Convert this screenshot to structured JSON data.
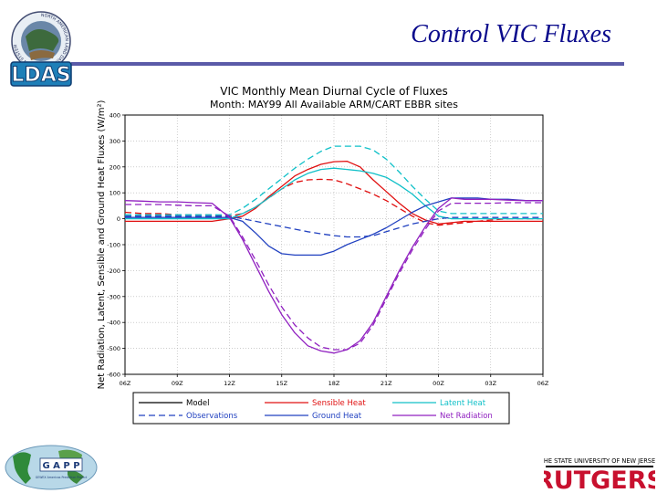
{
  "slide": {
    "title": "Control VIC Fluxes",
    "title_color": "#0a0a8c",
    "rule_color": "#5a5aa8"
  },
  "logos": {
    "ldas": {
      "text": "LDAS",
      "ring_text": "NORTH AMERICAN LAND DATA ASSIMILATION SYSTEM"
    },
    "gapp": {
      "text": "G A P P",
      "subtext": "GEWEX Americas Prediction Project"
    },
    "rutgers": {
      "top_text": "THE STATE UNIVERSITY OF NEW JERSEY",
      "text": "RUTGERS"
    }
  },
  "chart_data": {
    "type": "line",
    "title": "VIC Monthly Mean Diurnal Cycle of Fluxes",
    "subtitle": "Month: MAY99 All Available ARM/CART EBBR sites",
    "ylabel": "Net Radiation, Latent, Sensible and Ground Heat Fluxes (W/m²)",
    "xlabel": "",
    "categories": [
      "06Z",
      "09Z",
      "12Z",
      "15Z",
      "18Z",
      "21Z",
      "00Z",
      "03Z",
      "06Z"
    ],
    "x_hours": [
      0,
      3,
      6,
      9,
      12,
      15,
      18,
      21,
      24
    ],
    "ylim": [
      -600,
      400
    ],
    "yticks": [
      400,
      300,
      200,
      100,
      0,
      -100,
      -200,
      -300,
      -400,
      -500,
      -600
    ],
    "grid": true,
    "colors": {
      "sensible": "#e01010",
      "latent": "#10c0c8",
      "ground": "#2040c0",
      "net": "#9020c0"
    },
    "series": [
      {
        "name": "Sensible Heat",
        "variant": "model",
        "color": "sensible",
        "x": [
          0,
          1,
          2,
          3,
          4,
          5,
          6,
          6.75,
          7.5,
          8.25,
          9,
          9.75,
          10.5,
          11.25,
          12,
          12.75,
          13.5,
          14.25,
          15,
          15.75,
          16.5,
          17.25,
          18,
          18.75,
          19.5,
          20.25,
          21,
          22,
          23,
          24
        ],
        "values": [
          -10,
          -10,
          -10,
          -10,
          -10,
          -10,
          0,
          10,
          40,
          85,
          125,
          165,
          190,
          210,
          220,
          222,
          200,
          150,
          105,
          60,
          20,
          -5,
          -20,
          -15,
          -10,
          -10,
          -10,
          -10,
          -10,
          -10
        ]
      },
      {
        "name": "Sensible Heat",
        "variant": "observations",
        "color": "sensible",
        "x": [
          0,
          1,
          2,
          3,
          4,
          5,
          6,
          6.75,
          7.5,
          8.25,
          9,
          9.75,
          10.5,
          11.25,
          12,
          12.75,
          13.5,
          14.25,
          15,
          15.75,
          16.5,
          17.25,
          18,
          18.75,
          19.5,
          20.25,
          21,
          22,
          23,
          24
        ],
        "values": [
          25,
          20,
          20,
          15,
          15,
          15,
          10,
          20,
          45,
          80,
          115,
          140,
          150,
          152,
          150,
          135,
          115,
          95,
          70,
          40,
          10,
          -15,
          -25,
          -20,
          -15,
          -10,
          -5,
          0,
          0,
          0
        ]
      },
      {
        "name": "Latent Heat",
        "variant": "model",
        "color": "latent",
        "x": [
          0,
          1,
          2,
          3,
          4,
          5,
          6,
          6.75,
          7.5,
          8.25,
          9,
          9.75,
          10.5,
          11.25,
          12,
          12.75,
          13.5,
          14.25,
          15,
          15.75,
          16.5,
          17.25,
          18,
          18.75,
          19.5,
          20.25,
          21,
          22,
          23,
          24
        ],
        "values": [
          0,
          0,
          0,
          0,
          0,
          0,
          0,
          20,
          45,
          80,
          115,
          150,
          175,
          190,
          195,
          190,
          185,
          175,
          160,
          130,
          95,
          50,
          10,
          0,
          0,
          0,
          0,
          0,
          0,
          0
        ]
      },
      {
        "name": "Latent Heat",
        "variant": "observations",
        "color": "latent",
        "x": [
          0,
          1,
          2,
          3,
          4,
          5,
          6,
          6.75,
          7.5,
          8.25,
          9,
          9.75,
          10.5,
          11.25,
          12,
          12.75,
          13.5,
          14.25,
          15,
          15.75,
          16.5,
          17.25,
          18,
          18.75,
          19.5,
          20.25,
          21,
          22,
          23,
          24
        ],
        "values": [
          15,
          15,
          15,
          15,
          15,
          15,
          15,
          40,
          75,
          115,
          155,
          195,
          230,
          260,
          280,
          280,
          280,
          265,
          230,
          180,
          125,
          75,
          30,
          20,
          20,
          20,
          20,
          20,
          20,
          20
        ]
      },
      {
        "name": "Ground Heat",
        "variant": "model",
        "color": "ground",
        "x": [
          0,
          1,
          2,
          3,
          4,
          5,
          6,
          6.75,
          7.5,
          8.25,
          9,
          9.75,
          10.5,
          11.25,
          12,
          12.75,
          13.5,
          14.25,
          15,
          15.75,
          16.5,
          17.25,
          18,
          18.75,
          19.5,
          20.25,
          21,
          22,
          23,
          24
        ],
        "values": [
          5,
          5,
          5,
          5,
          5,
          5,
          5,
          -10,
          -55,
          -105,
          -135,
          -140,
          -140,
          -140,
          -125,
          -100,
          -80,
          -60,
          -35,
          -5,
          25,
          50,
          65,
          80,
          80,
          80,
          75,
          75,
          70,
          70
        ]
      },
      {
        "name": "Ground Heat",
        "variant": "observations",
        "color": "ground",
        "x": [
          0,
          1,
          2,
          3,
          4,
          5,
          6,
          6.75,
          7.5,
          8.25,
          9,
          9.75,
          10.5,
          11.25,
          12,
          12.75,
          13.5,
          14.25,
          15,
          15.75,
          16.5,
          17.25,
          18,
          18.75,
          19.5,
          20.25,
          21,
          22,
          23,
          24
        ],
        "values": [
          10,
          10,
          10,
          10,
          10,
          10,
          10,
          0,
          -10,
          -20,
          -30,
          -40,
          -50,
          -58,
          -65,
          -70,
          -70,
          -65,
          -50,
          -35,
          -20,
          -10,
          0,
          5,
          5,
          5,
          5,
          5,
          5,
          5
        ]
      },
      {
        "name": "Net Radiation",
        "variant": "model",
        "color": "net",
        "x": [
          0,
          1,
          2,
          3,
          4,
          5,
          6,
          6.75,
          7.5,
          8.25,
          9,
          9.75,
          10.5,
          11.25,
          12,
          12.75,
          13.5,
          14.25,
          15,
          15.75,
          16.5,
          17.25,
          18,
          18.75,
          19.5,
          20.25,
          21,
          22,
          23,
          24
        ],
        "values": [
          70,
          68,
          65,
          65,
          62,
          60,
          5,
          -80,
          -180,
          -280,
          -370,
          -440,
          -490,
          -510,
          -518,
          -505,
          -470,
          -400,
          -300,
          -200,
          -110,
          -30,
          40,
          80,
          75,
          75,
          75,
          72,
          70,
          70
        ]
      },
      {
        "name": "Net Radiation",
        "variant": "observations",
        "color": "net",
        "x": [
          0,
          1,
          2,
          3,
          4,
          5,
          6,
          6.75,
          7.5,
          8.25,
          9,
          9.75,
          10.5,
          11.25,
          12,
          12.75,
          13.5,
          14.25,
          15,
          15.75,
          16.5,
          17.25,
          18,
          18.75,
          19.5,
          20.25,
          21,
          22,
          23,
          24
        ],
        "values": [
          55,
          55,
          55,
          52,
          50,
          50,
          10,
          -70,
          -160,
          -255,
          -340,
          -410,
          -460,
          -495,
          -505,
          -505,
          -480,
          -410,
          -310,
          -210,
          -120,
          -40,
          30,
          60,
          60,
          60,
          60,
          62,
          62,
          62
        ]
      }
    ],
    "legend": {
      "placement": "bottom",
      "items": [
        {
          "label": "Model",
          "style": "solid",
          "color": "#000000"
        },
        {
          "label": "Sensible Heat",
          "style": "solid",
          "color": "#e01010"
        },
        {
          "label": "Latent Heat",
          "style": "solid",
          "color": "#10c0c8"
        },
        {
          "label": "Observations",
          "style": "dashed",
          "color": "#2040c0"
        },
        {
          "label": "Ground Heat",
          "style": "solid",
          "color": "#2040c0"
        },
        {
          "label": "Net Radiation",
          "style": "solid",
          "color": "#9020c0"
        }
      ]
    }
  }
}
